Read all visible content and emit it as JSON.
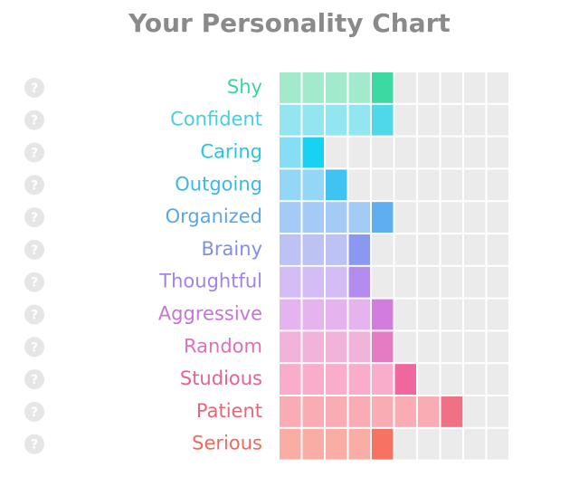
{
  "chart_data": {
    "type": "bar",
    "orientation": "horizontal",
    "title": "Your Personality Chart",
    "categories": [
      "Shy",
      "Confident",
      "Caring",
      "Outgoing",
      "Organized",
      "Brainy",
      "Thoughtful",
      "Aggressive",
      "Random",
      "Studious",
      "Patient",
      "Serious"
    ],
    "values": [
      5,
      5,
      2,
      3,
      5,
      4,
      4,
      5,
      5,
      6,
      8,
      5
    ],
    "xlim": [
      0,
      10
    ],
    "colors": [
      "#a3e9cc",
      "#93e6ef",
      "#86def6",
      "#93d6f6",
      "#a3cbf6",
      "#bcc2f3",
      "#d4bcf4",
      "#e5b4ee",
      "#f1b3da",
      "#f9adca",
      "#f9acb3",
      "#f9ada4"
    ],
    "highlight_colors": [
      "#3dd9a2",
      "#4fd8e8",
      "#18d2f4",
      "#40c2f2",
      "#5eaef1",
      "#8b98ef",
      "#b48cf0",
      "#d27dde",
      "#e47cc3",
      "#f067a0",
      "#ef7183",
      "#f67262"
    ],
    "label_colors": [
      "#3fd49a",
      "#45cfe0",
      "#27c6e6",
      "#3cb8e8",
      "#5aa6e6",
      "#7f8fe4",
      "#a583e6",
      "#c576d3",
      "#d973b6",
      "#e36495",
      "#e3697a",
      "#e96c5f"
    ]
  }
}
